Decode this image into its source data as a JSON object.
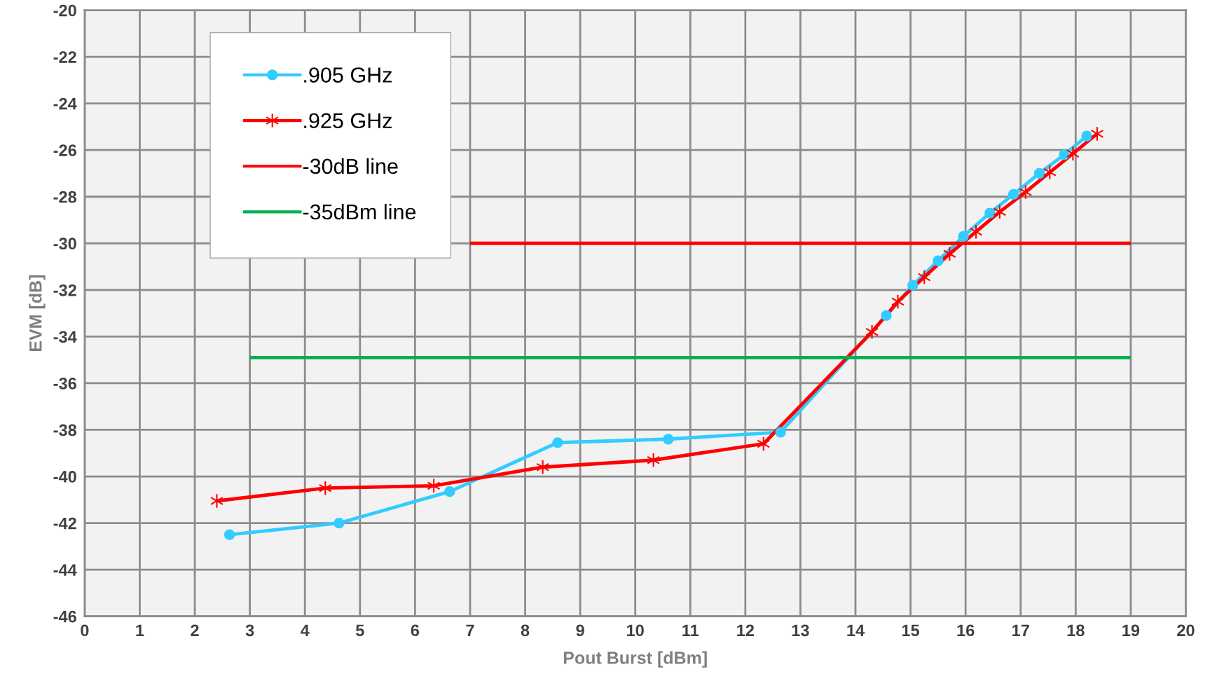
{
  "chart_data": {
    "type": "line",
    "xlabel": "Pout Burst [dBm]",
    "ylabel": "EVM [dB]",
    "xlim": [
      0,
      20
    ],
    "xticks": [
      0,
      1,
      2,
      3,
      4,
      5,
      6,
      7,
      8,
      9,
      10,
      11,
      12,
      13,
      14,
      15,
      16,
      17,
      18,
      19,
      20
    ],
    "ylim": [
      -46,
      -20
    ],
    "yticks": [
      -46,
      -44,
      -42,
      -40,
      -38,
      -36,
      -34,
      -32,
      -30,
      -28,
      -26,
      -24,
      -22,
      -20
    ],
    "grid": true,
    "legend": "top left",
    "series": [
      {
        "name": ".905 GHz",
        "color": "#33ccff",
        "marker": "circle",
        "x": [
          2.63,
          4.62,
          6.63,
          8.59,
          10.6,
          12.64,
          14.56,
          15.04,
          15.5,
          15.96,
          16.44,
          16.87,
          17.34,
          17.79,
          18.2
        ],
        "values": [
          -42.5,
          -42.0,
          -40.65,
          -38.55,
          -38.4,
          -38.1,
          -33.1,
          -31.8,
          -30.75,
          -29.7,
          -28.7,
          -27.9,
          -27.0,
          -26.2,
          -25.4
        ]
      },
      {
        "name": ".925 GHz",
        "color": "#ff0000",
        "marker": "cross",
        "x": [
          2.4,
          4.37,
          6.34,
          8.32,
          10.33,
          12.33,
          14.3,
          14.77,
          15.25,
          15.71,
          16.19,
          16.62,
          17.09,
          17.53,
          17.95,
          18.39
        ],
        "values": [
          -41.05,
          -40.5,
          -40.4,
          -39.6,
          -39.3,
          -38.6,
          -33.8,
          -32.5,
          -31.45,
          -30.45,
          -29.5,
          -28.65,
          -27.8,
          -26.95,
          -26.15,
          -25.3
        ]
      },
      {
        "name": "-30dB line",
        "color": "#ff0000",
        "marker": "none",
        "x": [
          7,
          19
        ],
        "values": [
          -30,
          -30
        ]
      },
      {
        "name": "-35dBm line",
        "color": "#00b050",
        "marker": "none",
        "x": [
          3,
          19
        ],
        "values": [
          -34.9,
          -34.9
        ]
      }
    ]
  }
}
